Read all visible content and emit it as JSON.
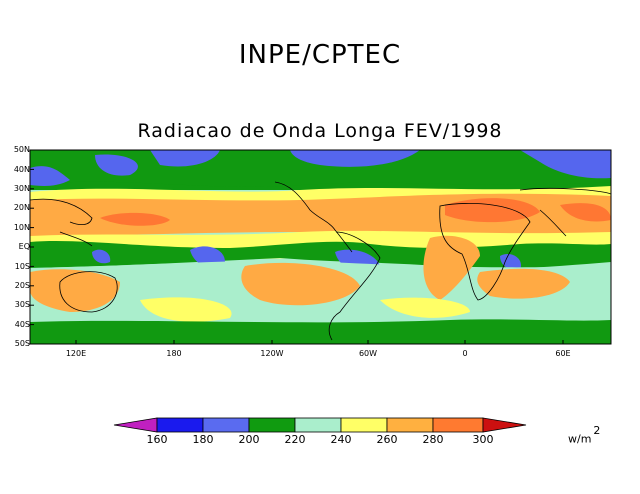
{
  "header": {
    "org": "INPE/CPTEC",
    "title": "Radiacao de Onda Longa FEV/1998"
  },
  "map": {
    "lat_labels": [
      "50N",
      "40N",
      "30N",
      "20N",
      "10N",
      "EQ",
      "10S",
      "20S",
      "30S",
      "40S",
      "50S"
    ],
    "lon_labels": [
      "120E",
      "180",
      "120W",
      "60W",
      "0",
      "60E"
    ],
    "level_colors": [
      "#2233dd",
      "#5566ee",
      "#119911",
      "#aaeecc",
      "#ffff66",
      "#ffaa44",
      "#ff7733"
    ]
  },
  "colorbar": {
    "labels": [
      "160",
      "180",
      "200",
      "220",
      "240",
      "260",
      "280",
      "300"
    ],
    "colors": [
      "#c020c0",
      "#1a1aee",
      "#5a6bf0",
      "#109b10",
      "#aaeecc",
      "#ffff66",
      "#ffb040",
      "#ff7a30",
      "#cc1010"
    ],
    "units": "w/m",
    "units_exp": "2"
  }
}
